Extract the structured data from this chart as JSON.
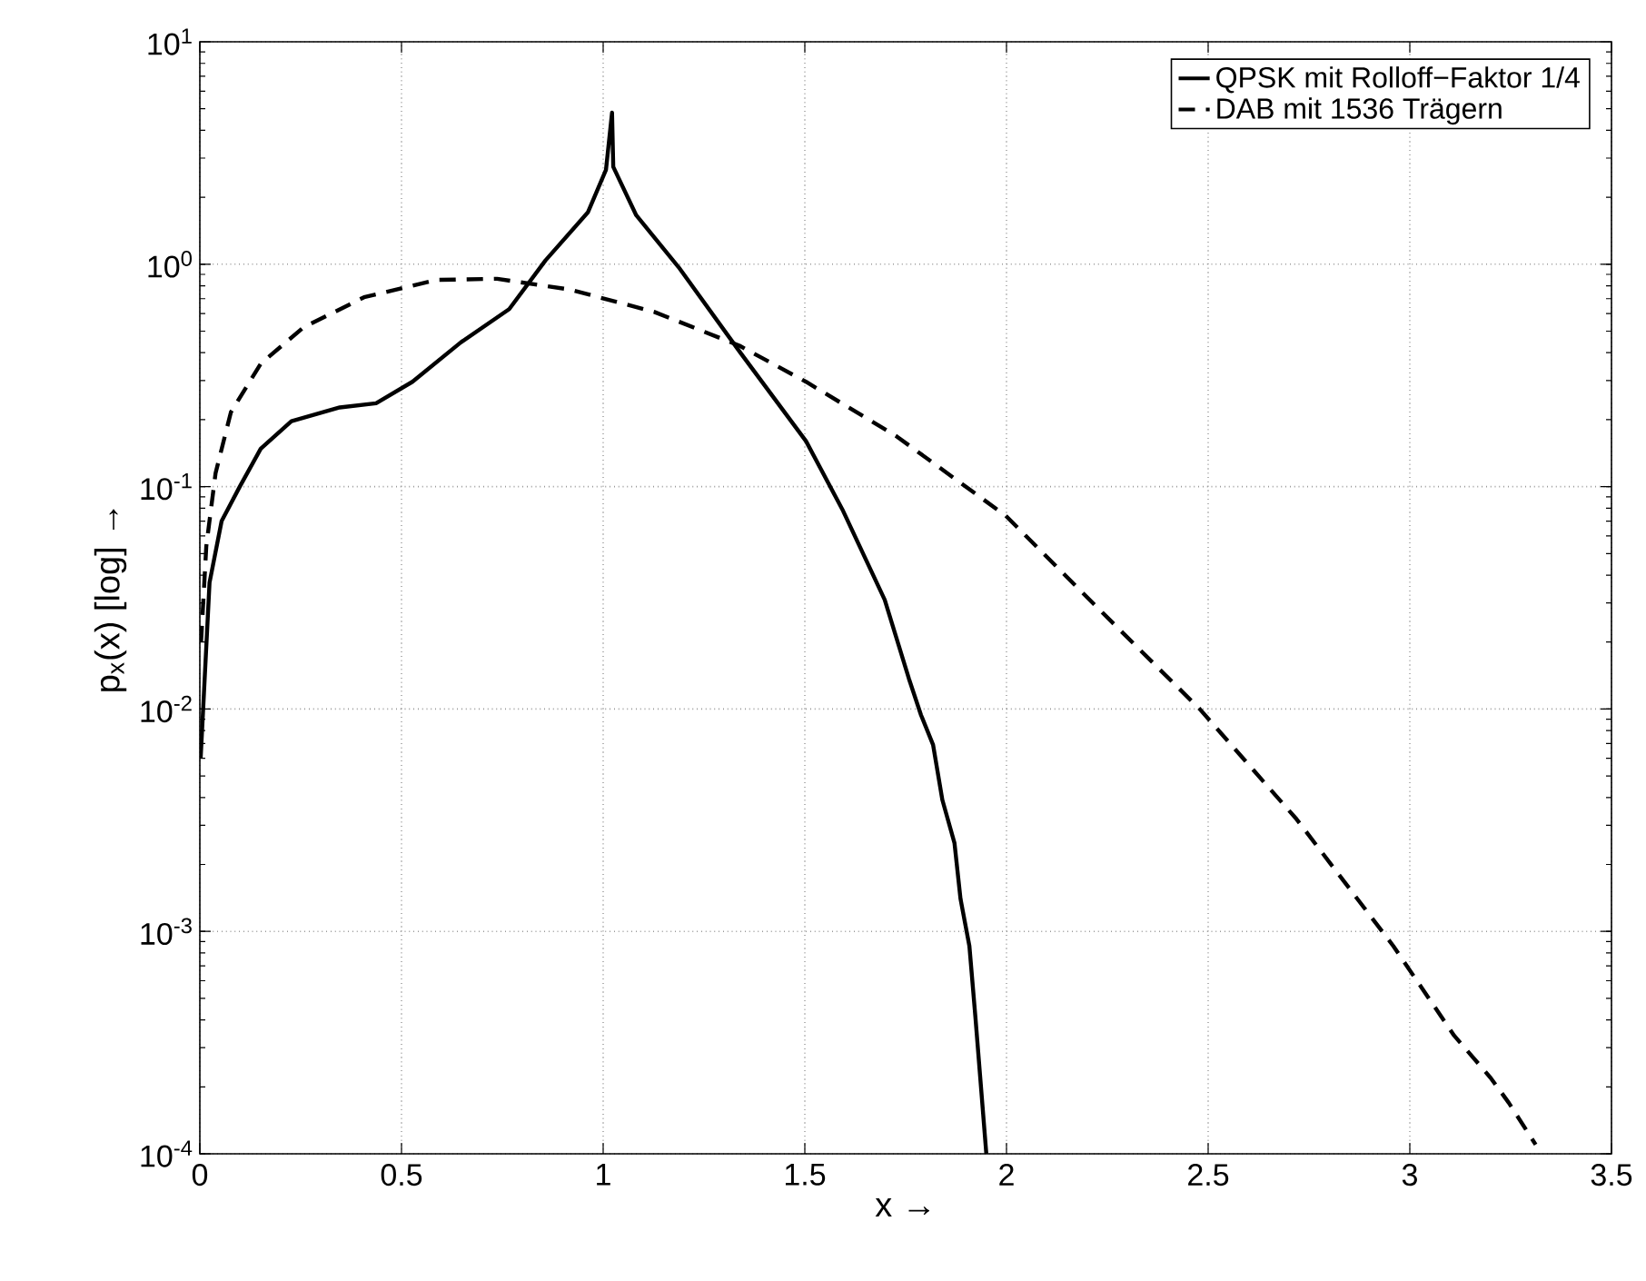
{
  "chart_data": {
    "type": "line",
    "xlabel": "x  →",
    "ylabel": "p$_{x}$(x)  [log]  →",
    "log": "y",
    "grid": true,
    "legend": "top right",
    "xlim": [
      0,
      3.5
    ],
    "ylim": [
      0.0001,
      10
    ],
    "xticks": [
      0,
      0.5,
      1,
      1.5,
      2,
      2.5,
      3,
      3.5
    ],
    "yticks": [
      {
        "value": 0.0001,
        "label": "10$^{-4}$"
      },
      {
        "value": 0.001,
        "label": "10$^{-3}$"
      },
      {
        "value": 0.01,
        "label": "10$^{-2}$"
      },
      {
        "value": 0.1,
        "label": "10$^{-1}$"
      },
      {
        "value": 1,
        "label": "10$^{0}$"
      },
      {
        "value": 10,
        "label": "10$^{1}$"
      }
    ],
    "series": [
      {
        "name": "QPSK mit Rolloff−Faktor 1/4",
        "color": "#000000",
        "line_style": "solid",
        "x": [
          0.002,
          0.024,
          0.054,
          0.099,
          0.151,
          0.227,
          0.347,
          0.437,
          0.527,
          0.647,
          0.767,
          0.857,
          0.962,
          1.007,
          1.022,
          1.025,
          1.082,
          1.187,
          1.338,
          1.503,
          1.593,
          1.698,
          1.758,
          1.788,
          1.818,
          1.841,
          1.871,
          1.886,
          1.908,
          1.923,
          1.95
        ],
        "values": [
          0.006,
          0.037,
          0.07,
          0.1,
          0.148,
          0.197,
          0.227,
          0.237,
          0.296,
          0.445,
          0.628,
          1.04,
          1.71,
          2.66,
          4.8,
          2.74,
          1.66,
          0.97,
          0.405,
          0.16,
          0.079,
          0.031,
          0.0137,
          0.0094,
          0.0069,
          0.0039,
          0.0025,
          0.0014,
          0.00086,
          0.00041,
          0.0001
        ]
      },
      {
        "name": "DAB mit 1536 Trägern",
        "color": "#000000",
        "line_style": "dashed",
        "x": [
          0.003,
          0.016,
          0.039,
          0.077,
          0.151,
          0.257,
          0.407,
          0.587,
          0.737,
          0.917,
          1.127,
          1.338,
          1.503,
          1.728,
          1.998,
          2.239,
          2.479,
          2.719,
          2.959,
          3.11,
          3.2,
          3.245,
          3.312
        ],
        "values": [
          0.02,
          0.054,
          0.115,
          0.216,
          0.357,
          0.52,
          0.71,
          0.85,
          0.86,
          0.77,
          0.61,
          0.43,
          0.296,
          0.168,
          0.074,
          0.027,
          0.01,
          0.0032,
          0.00086,
          0.00034,
          0.00022,
          0.00017,
          0.00011
        ]
      }
    ]
  }
}
